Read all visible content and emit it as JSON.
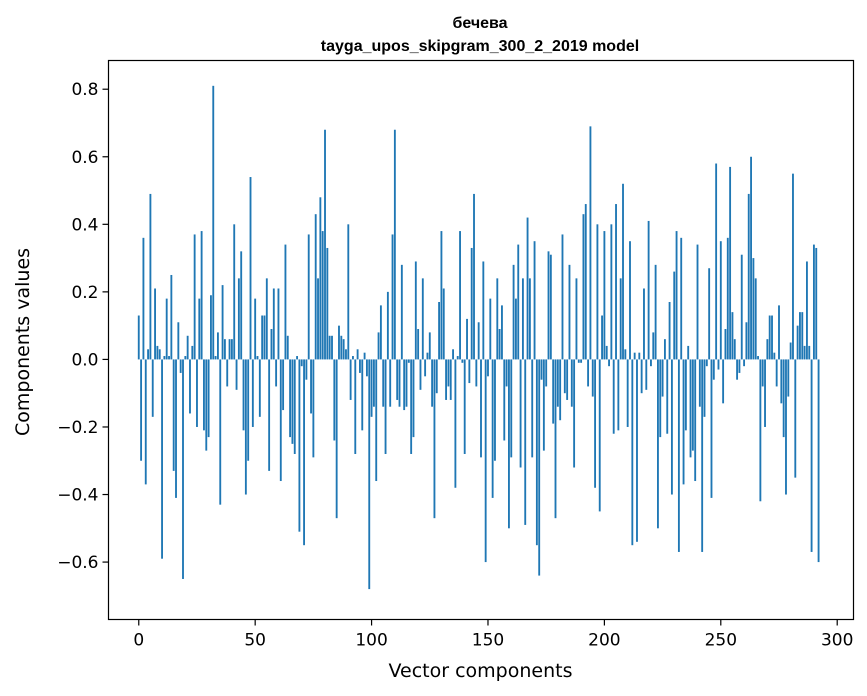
{
  "chart_data": {
    "type": "bar",
    "title": "бечева",
    "subtitle": "tayga_upos_skipgram_300_2_2019 model",
    "xlabel": "Vector components",
    "ylabel": "Components values",
    "xlim": [
      -13,
      307
    ],
    "ylim": [
      -0.77,
      0.885
    ],
    "xticks": [
      0,
      50,
      100,
      150,
      200,
      250,
      300
    ],
    "yticks": [
      -0.6,
      -0.4,
      -0.2,
      0.0,
      0.2,
      0.4,
      0.6,
      0.8
    ],
    "ytick_labels": [
      "−0.6",
      "−0.4",
      "−0.2",
      "0.0",
      "0.2",
      "0.4",
      "0.6",
      "0.8"
    ],
    "color": "#1f77b4",
    "values": [
      0.13,
      -0.3,
      0.36,
      -0.37,
      0.03,
      0.49,
      -0.17,
      0.21,
      0.04,
      0.03,
      -0.59,
      0.01,
      0.18,
      0.01,
      0.25,
      -0.33,
      -0.41,
      0.11,
      -0.04,
      -0.65,
      0.01,
      0.07,
      -0.16,
      0.04,
      0.37,
      -0.2,
      0.18,
      0.38,
      -0.21,
      -0.27,
      -0.23,
      0.19,
      0.81,
      0.01,
      0.08,
      -0.43,
      0.22,
      0.06,
      -0.08,
      0.06,
      0.06,
      0.4,
      -0.09,
      0.24,
      0.32,
      -0.21,
      -0.4,
      -0.3,
      0.54,
      -0.2,
      0.18,
      0.01,
      -0.17,
      0.13,
      0.13,
      0.24,
      -0.33,
      0.09,
      0.21,
      -0.08,
      0.21,
      -0.36,
      -0.15,
      0.34,
      0.07,
      -0.23,
      -0.25,
      -0.28,
      0.01,
      -0.51,
      -0.02,
      -0.55,
      -0.06,
      0.37,
      -0.16,
      -0.29,
      0.43,
      0.24,
      0.48,
      0.38,
      0.68,
      0.33,
      0.07,
      0.07,
      -0.24,
      -0.47,
      0.1,
      0.07,
      0.06,
      0.03,
      0.4,
      -0.12,
      0.01,
      -0.28,
      0.03,
      -0.04,
      -0.21,
      0.02,
      -0.05,
      -0.68,
      -0.17,
      -0.14,
      -0.36,
      0.08,
      0.16,
      -0.14,
      -0.28,
      0.2,
      -0.14,
      0.37,
      0.68,
      -0.12,
      -0.14,
      0.28,
      -0.15,
      -0.14,
      -0.01,
      -0.28,
      -0.23,
      0.29,
      0.09,
      -0.09,
      0.24,
      -0.05,
      0.02,
      0.08,
      -0.14,
      -0.47,
      -0.1,
      0.17,
      0.38,
      0.21,
      -0.12,
      -0.08,
      -0.12,
      0.03,
      -0.38,
      0.01,
      0.38,
      -0.01,
      -0.28,
      0.12,
      -0.07,
      0.33,
      0.49,
      -0.08,
      0.11,
      -0.29,
      0.29,
      -0.6,
      -0.05,
      0.18,
      -0.41,
      -0.3,
      0.24,
      0.09,
      0.16,
      -0.24,
      -0.08,
      -0.5,
      -0.29,
      0.28,
      0.18,
      0.34,
      -0.32,
      0.24,
      -0.49,
      0.42,
      0.24,
      -0.29,
      0.35,
      -0.55,
      -0.64,
      -0.06,
      -0.27,
      -0.08,
      0.32,
      0.31,
      -0.19,
      -0.47,
      -0.14,
      -0.18,
      0.37,
      -0.1,
      -0.12,
      0.28,
      -0.14,
      -0.32,
      0.24,
      -0.01,
      -0.01,
      0.43,
      0.46,
      -0.08,
      0.69,
      -0.11,
      -0.38,
      0.4,
      -0.45,
      0.13,
      0.38,
      0.04,
      -0.02,
      0.4,
      -0.22,
      0.46,
      -0.21,
      0.24,
      0.52,
      0.03,
      -0.2,
      0.35,
      -0.55,
      0.02,
      -0.54,
      0.02,
      -0.1,
      0.21,
      -0.09,
      0.41,
      -0.02,
      0.08,
      0.28,
      -0.5,
      -0.23,
      -0.11,
      0.06,
      -0.22,
      0.17,
      -0.4,
      0.26,
      0.38,
      -0.57,
      0.36,
      -0.37,
      -0.21,
      0.04,
      -0.29,
      -0.27,
      -0.36,
      0.34,
      -0.14,
      -0.57,
      -0.17,
      -0.02,
      0.27,
      -0.41,
      -0.06,
      0.58,
      -0.03,
      0.35,
      -0.13,
      0.09,
      0.36,
      0.57,
      0.14,
      0.06,
      -0.06,
      -0.04,
      0.31,
      -0.02,
      0.11,
      0.49,
      0.6,
      0.3,
      0.24,
      0.01,
      -0.42,
      -0.08,
      -0.2,
      0.06,
      0.13,
      0.13,
      0.02,
      -0.08,
      0.16,
      -0.13,
      -0.23,
      -0.4,
      -0.11,
      0.05,
      0.55,
      -0.35,
      0.1,
      0.14,
      0.14,
      0.04,
      0.29,
      0.04,
      -0.57,
      0.34,
      0.33,
      -0.6
    ]
  }
}
